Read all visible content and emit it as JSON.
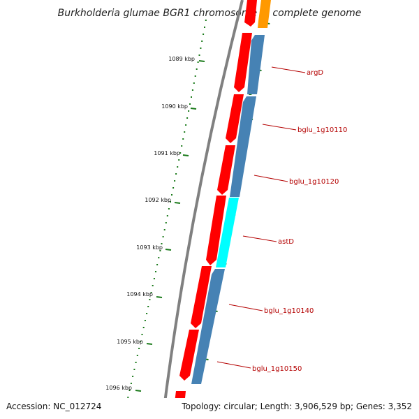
{
  "title": "Burkholderia glumae BGR1 chromosome 1, complete genome",
  "footer": {
    "accession": "Accession: NC_012724",
    "topology": "Topology: circular; Length: 3,906,529 bp; Genes: 3,352"
  },
  "ticks": [
    "1089 kbp",
    "1090 kbp",
    "1091 kbp",
    "1092 kbp",
    "1093 kbp",
    "1094 kbp",
    "1095 kbp",
    "1096 kbp"
  ],
  "genes": [
    "argD",
    "bglu_1g10110",
    "bglu_1g10120",
    "astD",
    "bglu_1g10140",
    "bglu_1g10150"
  ],
  "colors": {
    "cds_forward": "#ff0000",
    "cds_reverse": "#4682b4",
    "highlight": "#00ffff",
    "orange": "#ff9900",
    "backbone": "#808080",
    "gc_dots": "#1a7a1a",
    "label": "#b40000"
  }
}
